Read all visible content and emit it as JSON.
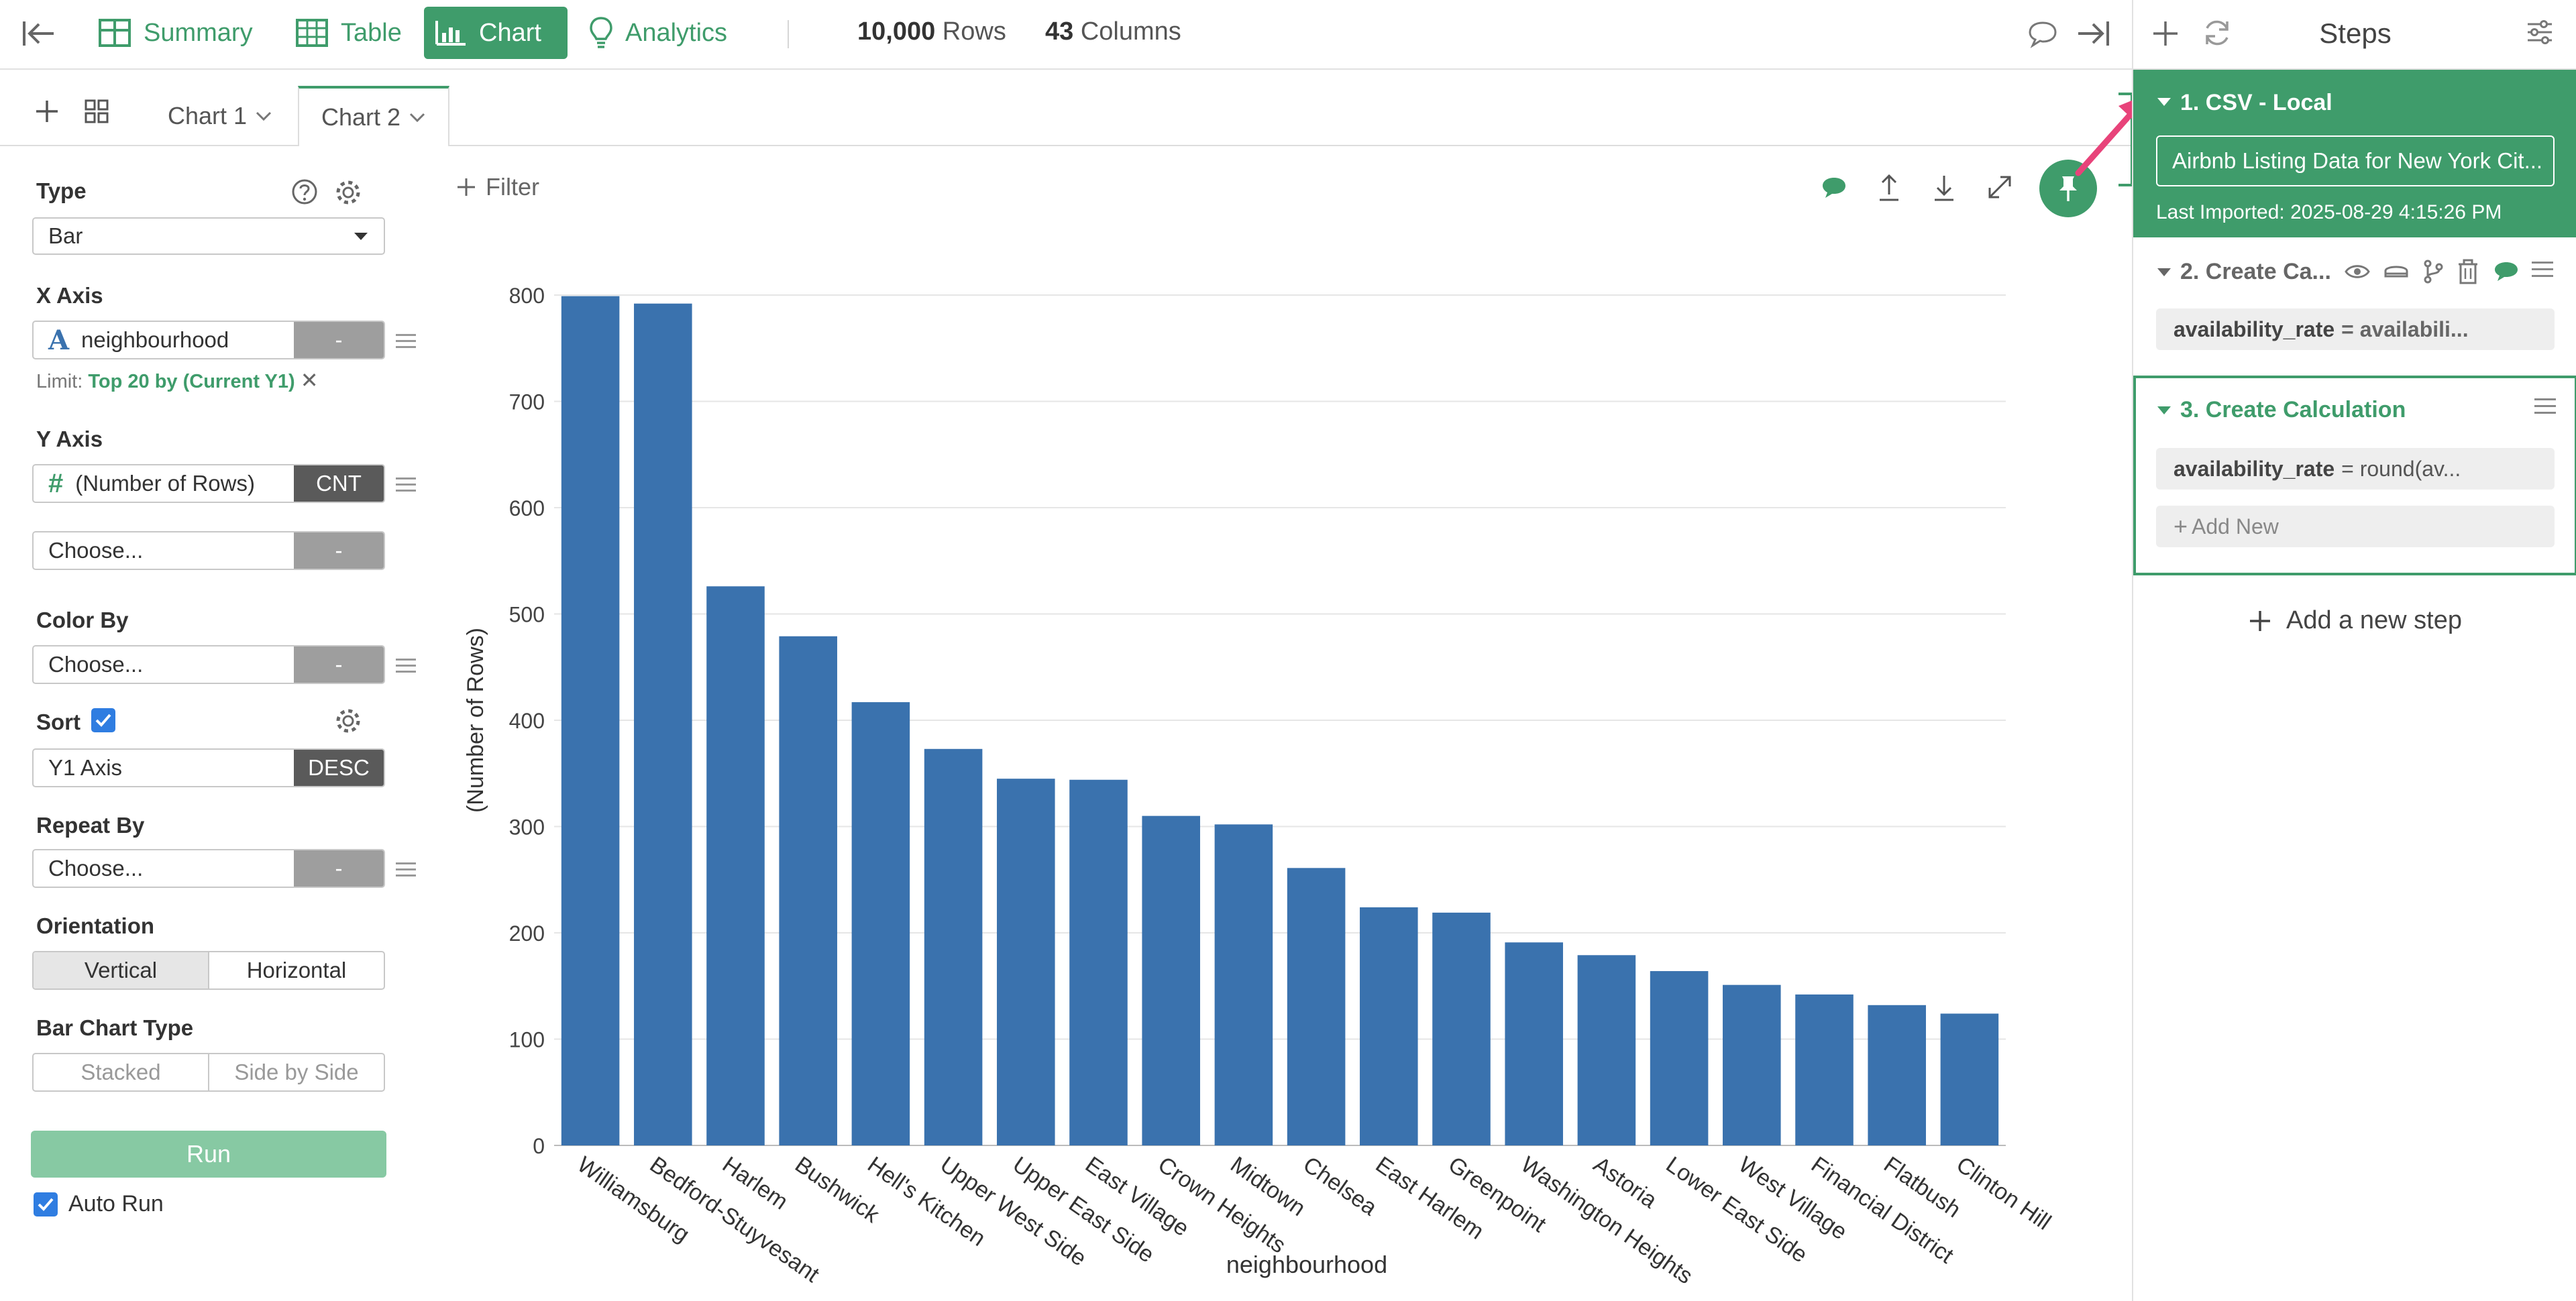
{
  "toolbar": {
    "nav": [
      "Summary",
      "Table",
      "Chart",
      "Analytics"
    ],
    "rows_value": "10,000",
    "rows_label": "Rows",
    "cols_value": "43",
    "cols_label": "Columns"
  },
  "chart_tabs": [
    "Chart 1",
    "Chart 2"
  ],
  "config": {
    "type_label": "Type",
    "type_value": "Bar",
    "xaxis_label": "X Axis",
    "xaxis_value": "neighbourhood",
    "xaxis_agg": "-",
    "limit_prefix": "Limit:",
    "limit_value": "Top 20 by (Current Y1)",
    "yaxis_label": "Y Axis",
    "yaxis_value": "(Number of Rows)",
    "yaxis_agg": "CNT",
    "yaxis2_value": "Choose...",
    "yaxis2_agg": "-",
    "colorby_label": "Color By",
    "colorby_value": "Choose...",
    "colorby_agg": "-",
    "sort_label": "Sort",
    "sort_value": "Y1 Axis",
    "sort_order": "DESC",
    "repeat_label": "Repeat By",
    "repeat_value": "Choose...",
    "repeat_agg": "-",
    "orientation_label": "Orientation",
    "orientation_options": [
      "Vertical",
      "Horizontal"
    ],
    "bartype_label": "Bar Chart Type",
    "bartype_options": [
      "Stacked",
      "Side by Side"
    ],
    "run_label": "Run",
    "autorun_label": "Auto Run"
  },
  "filter_label": "Filter",
  "chart_data": {
    "type": "bar",
    "categories": [
      "Williamsburg",
      "Bedford-Stuyvesant",
      "Harlem",
      "Bushwick",
      "Hell's Kitchen",
      "Upper West Side",
      "Upper East Side",
      "East Village",
      "Crown Heights",
      "Midtown",
      "Chelsea",
      "East Harlem",
      "Greenpoint",
      "Washington Heights",
      "Astoria",
      "Lower East Side",
      "West Village",
      "Financial District",
      "Flatbush",
      "Clinton Hill"
    ],
    "values": [
      799,
      792,
      526,
      479,
      417,
      373,
      345,
      344,
      310,
      302,
      261,
      224,
      219,
      191,
      179,
      164,
      151,
      142,
      132,
      124
    ],
    "ylabel": "(Number of Rows)",
    "xlabel": "neighbourhood",
    "ylim": [
      0,
      800
    ],
    "yticks": [
      0,
      100,
      200,
      300,
      400,
      500,
      600,
      700,
      800
    ],
    "grid": true,
    "bar_color": "#3a72ae"
  },
  "steps_panel": {
    "title": "Steps",
    "step1_title": "1. CSV - Local",
    "step1_source": "Airbnb Listing Data for New York Cit...",
    "step1_imported": "Last Imported: 2025-08-29 4:15:26 PM",
    "step2_title": "2. Create Ca...",
    "step2_var": "availability_rate",
    "step2_expr": "= availabili...",
    "step3_title": "3. Create Calculation",
    "step3_var": "availability_rate",
    "step3_expr": "= round(av...",
    "add_new_label": "Add New",
    "add_step_label": "Add a new step"
  },
  "colors": {
    "accent": "#3f9c6b",
    "bar": "#3a72ae",
    "annotation_arrow": "#e8437a"
  }
}
